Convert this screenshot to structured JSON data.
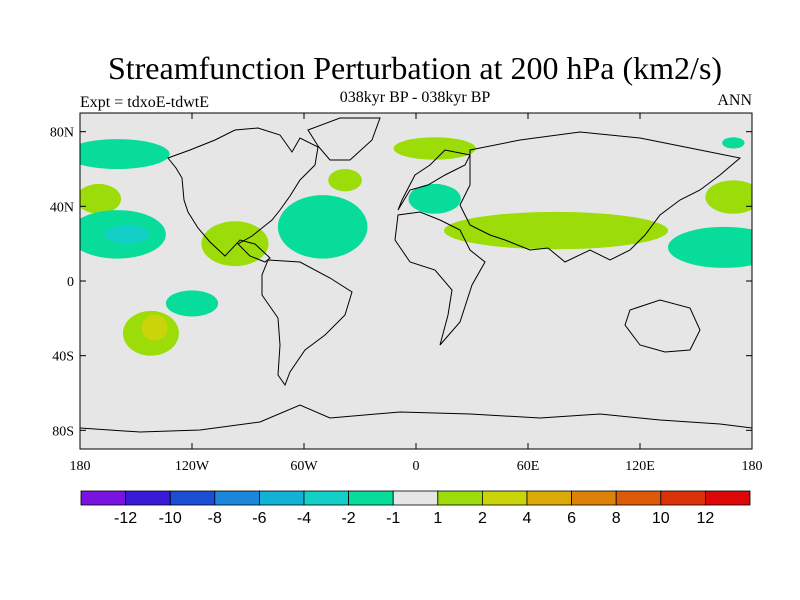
{
  "title": "Streamfunction Perturbation at 200 hPa (km2/s)",
  "left_label": "Expt = tdxoE-tdwtE",
  "center_label": "038kyr BP - 038kyr BP",
  "right_label": "ANN",
  "lat_ticks": [
    "80N",
    "40N",
    "0",
    "40S",
    "80S"
  ],
  "lon_ticks": [
    "180",
    "120W",
    "60W",
    "0",
    "60E",
    "120E",
    "180"
  ],
  "colorbar": {
    "labels": [
      "-12",
      "-10",
      "-8",
      "-6",
      "-4",
      "-2",
      "-1",
      "1",
      "2",
      "4",
      "6",
      "8",
      "10",
      "12"
    ],
    "colors": [
      "#7a12e0",
      "#3a1ad8",
      "#1a4ed6",
      "#1a86dc",
      "#12b2d6",
      "#12d0c8",
      "#08dc9a",
      "#e6e6e6",
      "#9cdc08",
      "#cad408",
      "#dcaa08",
      "#dc8208",
      "#dc5a08",
      "#dc3208",
      "#dc0808"
    ]
  },
  "colors": {
    "background_land_ocean": "#e6e6e6",
    "coast": "#000000",
    "positive_1_2": "#9cdc08",
    "positive_2_4": "#cad408",
    "negative_1_2": "#08dc9a",
    "negative_2_4": "#12d0c8"
  },
  "chart_data": {
    "type": "map-contour",
    "title": "Streamfunction Perturbation at 200 hPa (km2/s)",
    "subtitle": "038kyr BP - 038kyr BP",
    "season": "ANN",
    "experiment": "Expt = tdxoE-tdwtE",
    "lon_range": [
      -180,
      180
    ],
    "lat_range": [
      -90,
      90
    ],
    "contour_levels": [
      -12,
      -10,
      -8,
      -6,
      -4,
      -2,
      -1,
      1,
      2,
      4,
      6,
      8,
      10,
      12
    ],
    "anomalies": [
      {
        "name": "high-arctic-pacific",
        "lon": -160,
        "lat": 68,
        "rx": 28,
        "ry": 8,
        "level": "-2 to -1"
      },
      {
        "name": "north-pacific-east",
        "lon": -170,
        "lat": 44,
        "rx": 12,
        "ry": 8,
        "level": "1 to 2"
      },
      {
        "name": "subtropical-north-pacific",
        "lon": -160,
        "lat": 25,
        "rx": 26,
        "ry": 13,
        "level": "-2 to -1"
      },
      {
        "name": "subtropical-north-pacific-core",
        "lon": -155,
        "lat": 25,
        "rx": 12,
        "ry": 5,
        "level": "-4 to -2"
      },
      {
        "name": "central-america",
        "lon": -97,
        "lat": 20,
        "rx": 18,
        "ry": 12,
        "level": "1 to 2"
      },
      {
        "name": "western-atlantic",
        "lon": -50,
        "lat": 29,
        "rx": 24,
        "ry": 17,
        "level": "-2 to -1"
      },
      {
        "name": "north-atlantic",
        "lon": -38,
        "lat": 54,
        "rx": 9,
        "ry": 6,
        "level": "1 to 2"
      },
      {
        "name": "greenland-sea",
        "lon": 10,
        "lat": 71,
        "rx": 22,
        "ry": 6,
        "level": "1 to 2"
      },
      {
        "name": "mediterranean",
        "lon": 10,
        "lat": 44,
        "rx": 14,
        "ry": 8,
        "level": "-2 to -1"
      },
      {
        "name": "asia-subtropical-jet",
        "lon": 75,
        "lat": 27,
        "rx": 60,
        "ry": 10,
        "level": "1 to 2"
      },
      {
        "name": "east-asia-arctic",
        "lon": 170,
        "lat": 74,
        "rx": 6,
        "ry": 3,
        "level": "-2 to -1"
      },
      {
        "name": "northwest-pacific",
        "lon": 170,
        "lat": 45,
        "rx": 15,
        "ry": 9,
        "level": "1 to 2"
      },
      {
        "name": "western-pacific",
        "lon": 165,
        "lat": 18,
        "rx": 30,
        "ry": 11,
        "level": "-2 to -1"
      },
      {
        "name": "south-pacific-east",
        "lon": -120,
        "lat": -12,
        "rx": 14,
        "ry": 7,
        "level": "-2 to -1"
      },
      {
        "name": "south-pacific",
        "lon": -142,
        "lat": -28,
        "rx": 15,
        "ry": 12,
        "level": "1 to 2"
      },
      {
        "name": "south-pacific-core",
        "lon": -140,
        "lat": -25,
        "rx": 7,
        "ry": 7,
        "level": "2 to 4"
      }
    ]
  }
}
